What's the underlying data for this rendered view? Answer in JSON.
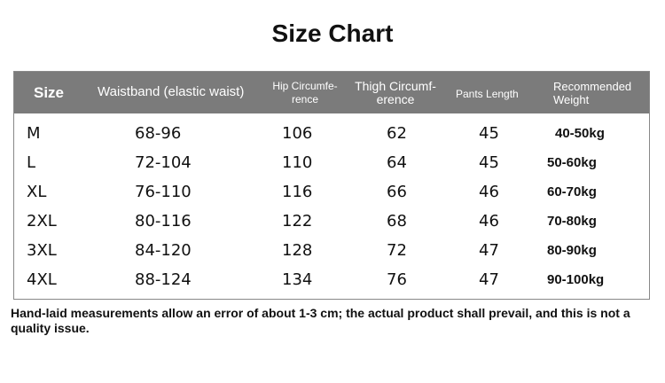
{
  "title": "Size Chart",
  "headers": [
    "Size",
    "Waistband (elastic waist)",
    "Hip Circumfe-rence",
    "Thigh Circumf-erence",
    "Pants Length",
    "Recommended Weight"
  ],
  "rows": [
    [
      "M",
      "68-96",
      "106",
      "62",
      "45",
      "40-50kg"
    ],
    [
      "L",
      "72-104",
      "110",
      "64",
      "45",
      "50-60kg"
    ],
    [
      "XL",
      "76-110",
      "116",
      "66",
      "46",
      "60-70kg"
    ],
    [
      "2XL",
      "80-116",
      "122",
      "68",
      "46",
      "70-80kg"
    ],
    [
      "3XL",
      "84-120",
      "128",
      "72",
      "47",
      "80-90kg"
    ],
    [
      "4XL",
      "88-124",
      "134",
      "76",
      "47",
      "90-100kg"
    ]
  ],
  "note": "Hand-laid measurements allow an error of about 1-3 cm; the actual product shall prevail, and this is not a quality issue.",
  "colors": {
    "header_bg": "#7b7b7b",
    "header_text": "#ffffff"
  }
}
